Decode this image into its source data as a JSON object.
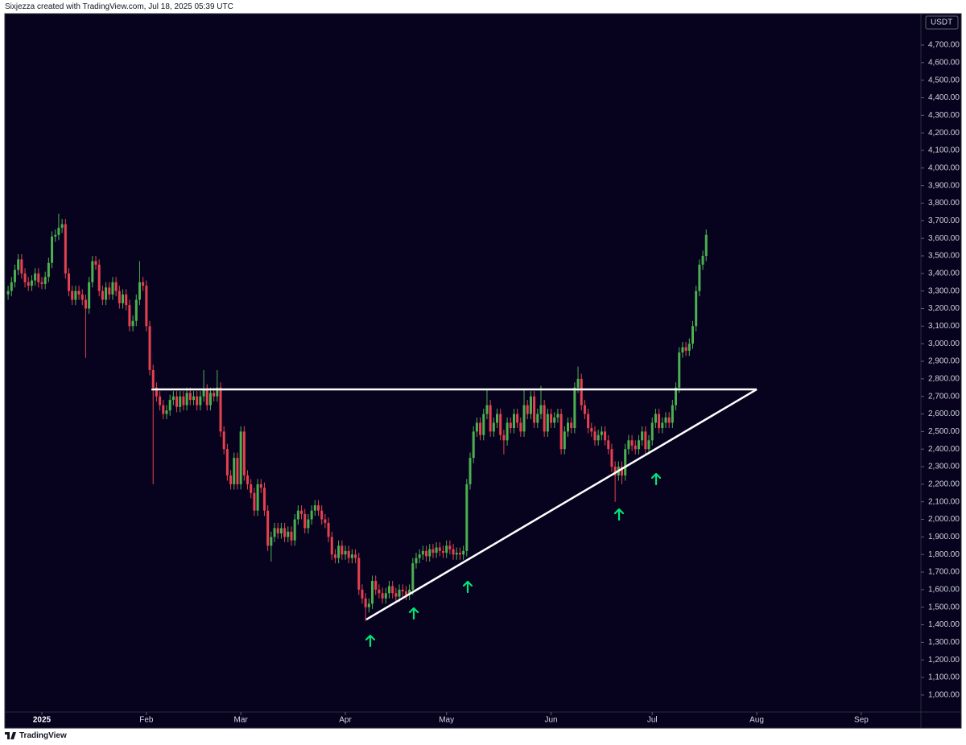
{
  "header": {
    "text": "Sixjezza created with TradingView.com, Jul 18, 2025 05:39 UTC"
  },
  "footer": {
    "brand": "TradingView"
  },
  "chart_data": {
    "type": "candlestick",
    "currency": "USDT",
    "up_color": "#4caf50",
    "down_color": "#e5414f",
    "background": "#07031f",
    "xlim": [
      -0.5,
      270.2
    ],
    "xticks": [
      {
        "value": 10,
        "label": "2025"
      },
      {
        "value": 41,
        "label": "Feb"
      },
      {
        "value": 69,
        "label": "Mar"
      },
      {
        "value": 100,
        "label": "Apr"
      },
      {
        "value": 130,
        "label": "May"
      },
      {
        "value": 161,
        "label": "Jun"
      },
      {
        "value": 191,
        "label": "Jul"
      },
      {
        "value": 222,
        "label": "Aug"
      },
      {
        "value": 253,
        "label": "Sep"
      }
    ],
    "ylim": [
      908,
      4874
    ],
    "yticks": [
      {
        "value": 1000,
        "label": "1,000.00"
      },
      {
        "value": 1100,
        "label": "1,100.00"
      },
      {
        "value": 1200,
        "label": "1,200.00"
      },
      {
        "value": 1300,
        "label": "1,300.00"
      },
      {
        "value": 1400,
        "label": "1,400.00"
      },
      {
        "value": 1500,
        "label": "1,500.00"
      },
      {
        "value": 1600,
        "label": "1,600.00"
      },
      {
        "value": 1700,
        "label": "1,700.00"
      },
      {
        "value": 1800,
        "label": "1,800.00"
      },
      {
        "value": 1900,
        "label": "1,900.00"
      },
      {
        "value": 2000,
        "label": "2,000.00"
      },
      {
        "value": 2100,
        "label": "2,100.00"
      },
      {
        "value": 2200,
        "label": "2,200.00"
      },
      {
        "value": 2300,
        "label": "2,300.00"
      },
      {
        "value": 2400,
        "label": "2,400.00"
      },
      {
        "value": 2500,
        "label": "2,500.00"
      },
      {
        "value": 2600,
        "label": "2,600.00"
      },
      {
        "value": 2700,
        "label": "2,700.00"
      },
      {
        "value": 2800,
        "label": "2,800.00"
      },
      {
        "value": 2900,
        "label": "2,900.00"
      },
      {
        "value": 3000,
        "label": "3,000.00"
      },
      {
        "value": 3100,
        "label": "3,100.00"
      },
      {
        "value": 3200,
        "label": "3,200.00"
      },
      {
        "value": 3300,
        "label": "3,300.00"
      },
      {
        "value": 3400,
        "label": "3,400.00"
      },
      {
        "value": 3500,
        "label": "3,500.00"
      },
      {
        "value": 3600,
        "label": "3,600.00"
      },
      {
        "value": 3700,
        "label": "3,700.00"
      },
      {
        "value": 3800,
        "label": "3,800.00"
      },
      {
        "value": 3900,
        "label": "3,900.00"
      },
      {
        "value": 4000,
        "label": "4,000.00"
      },
      {
        "value": 4100,
        "label": "4,100.00"
      },
      {
        "value": 4200,
        "label": "4,200.00"
      },
      {
        "value": 4300,
        "label": "4,300.00"
      },
      {
        "value": 4400,
        "label": "4,400.00"
      },
      {
        "value": 4500,
        "label": "4,500.00"
      },
      {
        "value": 4600,
        "label": "4,600.00"
      },
      {
        "value": 4700,
        "label": "4,700.00"
      }
    ],
    "open": [
      3280,
      3300,
      3350,
      3420,
      3480,
      3400,
      3350,
      3330,
      3360,
      3400,
      3350,
      3340,
      3380,
      3460,
      3610,
      3620,
      3660,
      3680,
      3400,
      3300,
      3250,
      3300,
      3280,
      3250,
      3200,
      3350,
      3470,
      3450,
      3300,
      3250,
      3320,
      3280,
      3350,
      3300,
      3230,
      3280,
      3220,
      3100,
      3130,
      3250,
      3350,
      3330,
      3100,
      2850,
      2750,
      2700,
      2650,
      2600,
      2620,
      2680,
      2700,
      2640,
      2700,
      2650,
      2720,
      2680,
      2700,
      2650,
      2700,
      2740,
      2650,
      2720,
      2700,
      2750,
      2500,
      2400,
      2250,
      2200,
      2350,
      2200,
      2500,
      2250,
      2200,
      2150,
      2050,
      2200,
      2180,
      2050,
      1850,
      1900,
      1950,
      1920,
      1950,
      1900,
      1930,
      1880,
      2000,
      2050,
      2030,
      1950,
      2000,
      2050,
      2080,
      2050,
      2000,
      1980,
      1900,
      1800,
      1780,
      1850,
      1800,
      1820,
      1780,
      1800,
      1780,
      1600,
      1550,
      1500,
      1520,
      1650,
      1600,
      1580,
      1550,
      1580,
      1620,
      1580,
      1560,
      1600,
      1590,
      1570,
      1600,
      1750,
      1780,
      1800,
      1820,
      1790,
      1830,
      1810,
      1840,
      1820,
      1810,
      1850,
      1830,
      1800,
      1810,
      1800,
      1820,
      2200,
      2350,
      2500,
      2550,
      2480,
      2600,
      2650,
      2500,
      2550,
      2600,
      2480,
      2450,
      2550,
      2520,
      2600,
      2550,
      2500,
      2650,
      2600,
      2700,
      2550,
      2600,
      2650,
      2500,
      2600,
      2550,
      2580,
      2600,
      2400,
      2500,
      2550,
      2520,
      2750,
      2800,
      2650,
      2600,
      2520,
      2500,
      2450,
      2480,
      2500,
      2450,
      2400,
      2300,
      2250,
      2300,
      2250,
      2400,
      2450,
      2420,
      2400,
      2450,
      2500,
      2400,
      2450,
      2550,
      2600,
      2520,
      2550,
      2580,
      2550,
      2650,
      2750,
      2950,
      2980,
      2960,
      3000,
      3100,
      3300,
      3450,
      3500
    ],
    "high": [
      3330,
      3380,
      3450,
      3510,
      3510,
      3430,
      3380,
      3390,
      3430,
      3430,
      3380,
      3410,
      3490,
      3640,
      3650,
      3740,
      3710,
      3710,
      3430,
      3330,
      3330,
      3330,
      3310,
      3280,
      3380,
      3500,
      3500,
      3480,
      3330,
      3350,
      3350,
      3380,
      3380,
      3330,
      3310,
      3310,
      3250,
      3160,
      3280,
      3470,
      3380,
      3360,
      3130,
      2880,
      2780,
      2730,
      2680,
      2650,
      2710,
      2730,
      2730,
      2730,
      2730,
      2750,
      2750,
      2730,
      2730,
      2730,
      2850,
      2770,
      2750,
      2750,
      2850,
      2780,
      2530,
      2430,
      2280,
      2380,
      2380,
      2530,
      2530,
      2280,
      2230,
      2180,
      2230,
      2230,
      2210,
      2080,
      1930,
      1980,
      1980,
      1980,
      1980,
      1960,
      1960,
      2030,
      2080,
      2080,
      2060,
      2030,
      2080,
      2110,
      2110,
      2080,
      2030,
      2010,
      1930,
      1830,
      1880,
      1880,
      1850,
      1850,
      1830,
      1830,
      1810,
      1630,
      1580,
      1550,
      1680,
      1680,
      1630,
      1610,
      1610,
      1650,
      1650,
      1610,
      1630,
      1630,
      1620,
      1630,
      1780,
      1810,
      1830,
      1850,
      1850,
      1860,
      1860,
      1870,
      1870,
      1850,
      1880,
      1880,
      1860,
      1840,
      1840,
      1850,
      2230,
      2380,
      2530,
      2580,
      2580,
      2630,
      2740,
      2680,
      2580,
      2630,
      2630,
      2510,
      2580,
      2580,
      2630,
      2630,
      2580,
      2740,
      2680,
      2730,
      2730,
      2630,
      2760,
      2680,
      2630,
      2630,
      2610,
      2630,
      2630,
      2530,
      2580,
      2580,
      2780,
      2870,
      2830,
      2680,
      2630,
      2550,
      2530,
      2510,
      2530,
      2530,
      2480,
      2430,
      2330,
      2330,
      2330,
      2430,
      2480,
      2480,
      2450,
      2480,
      2530,
      2530,
      2480,
      2580,
      2630,
      2630,
      2580,
      2610,
      2610,
      2680,
      2780,
      2980,
      3010,
      3010,
      3030,
      3130,
      3330,
      3480,
      3530,
      3650
    ],
    "low": [
      3250,
      3270,
      3320,
      3390,
      3370,
      3320,
      3300,
      3300,
      3330,
      3320,
      3310,
      3310,
      3350,
      3430,
      3580,
      3590,
      3630,
      3370,
      3270,
      3220,
      3220,
      3250,
      3220,
      2920,
      3170,
      3320,
      3420,
      3270,
      3220,
      3220,
      3250,
      3250,
      3270,
      3200,
      3200,
      3190,
      3070,
      3070,
      3100,
      3220,
      3300,
      3070,
      2820,
      2200,
      2670,
      2620,
      2570,
      2570,
      2590,
      2650,
      2610,
      2610,
      2620,
      2620,
      2650,
      2650,
      2620,
      2620,
      2670,
      2620,
      2620,
      2670,
      2670,
      2470,
      2370,
      2220,
      2170,
      2170,
      2170,
      2170,
      2220,
      2170,
      2120,
      2020,
      2020,
      2150,
      2020,
      1820,
      1760,
      1870,
      1890,
      1890,
      1870,
      1870,
      1850,
      1850,
      1970,
      2000,
      1920,
      1920,
      1970,
      2020,
      2020,
      1970,
      1950,
      1870,
      1770,
      1750,
      1750,
      1770,
      1770,
      1750,
      1750,
      1750,
      1570,
      1520,
      1420,
      1470,
      1490,
      1570,
      1550,
      1520,
      1520,
      1550,
      1550,
      1530,
      1530,
      1560,
      1540,
      1540,
      1570,
      1720,
      1750,
      1770,
      1760,
      1760,
      1780,
      1780,
      1790,
      1780,
      1780,
      1800,
      1770,
      1770,
      1770,
      1770,
      1790,
      2170,
      2320,
      2470,
      2450,
      2450,
      2570,
      2470,
      2470,
      2520,
      2450,
      2370,
      2420,
      2490,
      2490,
      2520,
      2470,
      2470,
      2570,
      2570,
      2520,
      2520,
      2570,
      2470,
      2470,
      2520,
      2520,
      2550,
      2370,
      2370,
      2470,
      2490,
      2490,
      2720,
      2620,
      2570,
      2490,
      2470,
      2420,
      2420,
      2450,
      2420,
      2370,
      2270,
      2100,
      2220,
      2200,
      2220,
      2370,
      2390,
      2370,
      2370,
      2420,
      2370,
      2370,
      2420,
      2520,
      2490,
      2490,
      2520,
      2520,
      2520,
      2620,
      2720,
      2920,
      2930,
      2930,
      2970,
      3070,
      3270,
      3420,
      3470
    ],
    "close": [
      3300,
      3350,
      3420,
      3480,
      3400,
      3350,
      3330,
      3360,
      3400,
      3350,
      3340,
      3380,
      3460,
      3610,
      3620,
      3660,
      3680,
      3400,
      3300,
      3250,
      3300,
      3280,
      3250,
      3200,
      3350,
      3470,
      3450,
      3300,
      3250,
      3320,
      3280,
      3350,
      3300,
      3230,
      3280,
      3220,
      3100,
      3130,
      3250,
      3350,
      3330,
      3100,
      2850,
      2750,
      2700,
      2650,
      2600,
      2620,
      2680,
      2700,
      2640,
      2700,
      2650,
      2720,
      2680,
      2700,
      2650,
      2700,
      2740,
      2650,
      2720,
      2700,
      2750,
      2500,
      2400,
      2250,
      2200,
      2350,
      2200,
      2500,
      2250,
      2200,
      2150,
      2050,
      2200,
      2180,
      2050,
      1850,
      1900,
      1950,
      1920,
      1950,
      1900,
      1930,
      1880,
      2000,
      2050,
      2030,
      1950,
      2000,
      2050,
      2080,
      2050,
      2000,
      1980,
      1900,
      1800,
      1780,
      1850,
      1800,
      1820,
      1780,
      1800,
      1780,
      1600,
      1550,
      1500,
      1520,
      1650,
      1600,
      1580,
      1550,
      1580,
      1620,
      1580,
      1560,
      1600,
      1590,
      1570,
      1600,
      1750,
      1780,
      1800,
      1820,
      1790,
      1830,
      1810,
      1840,
      1820,
      1810,
      1850,
      1830,
      1800,
      1810,
      1800,
      1820,
      2200,
      2350,
      2500,
      2550,
      2480,
      2600,
      2650,
      2500,
      2550,
      2600,
      2480,
      2450,
      2550,
      2520,
      2600,
      2550,
      2500,
      2650,
      2600,
      2700,
      2550,
      2600,
      2650,
      2500,
      2600,
      2550,
      2580,
      2600,
      2400,
      2500,
      2550,
      2520,
      2750,
      2800,
      2650,
      2600,
      2520,
      2500,
      2450,
      2480,
      2500,
      2450,
      2400,
      2300,
      2250,
      2300,
      2250,
      2400,
      2450,
      2420,
      2400,
      2450,
      2500,
      2400,
      2450,
      2550,
      2600,
      2520,
      2550,
      2580,
      2550,
      2650,
      2750,
      2950,
      2980,
      2960,
      3000,
      3100,
      3300,
      3450,
      3500,
      3620
    ],
    "lines": [
      {
        "color": "#ffffff",
        "x": [
          42.5,
          222
        ],
        "y": [
          2740,
          2740
        ]
      },
      {
        "color": "#ffffff",
        "x": [
          106.2,
          222
        ],
        "y": [
          1430,
          2740
        ]
      }
    ]
  }
}
